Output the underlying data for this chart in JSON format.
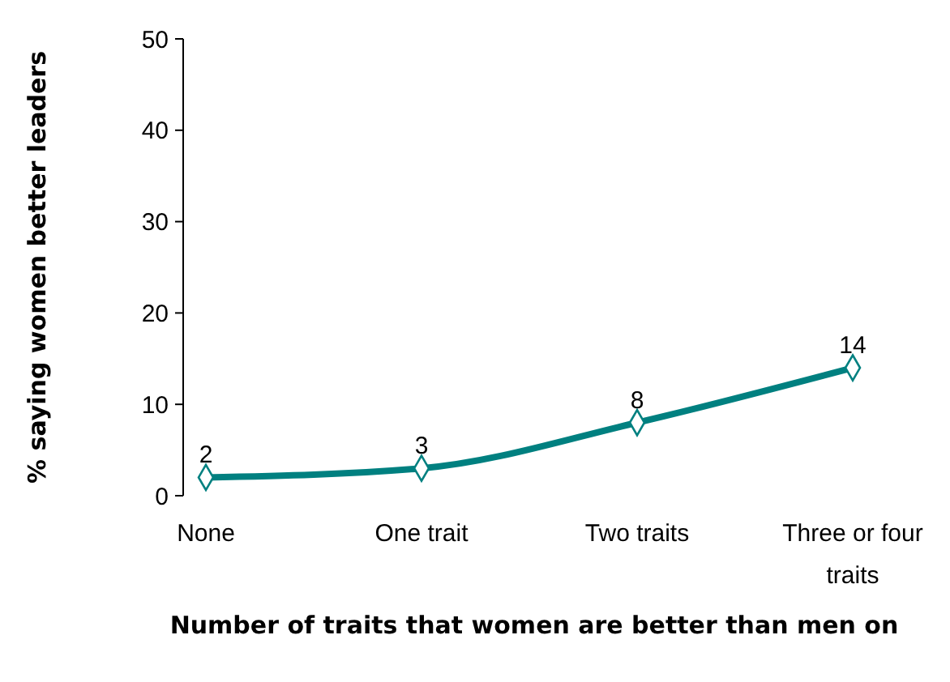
{
  "chart_data": {
    "type": "line",
    "xlabel": "Number of traits that women are better than men on",
    "ylabel": "% saying women better leaders",
    "categories": [
      "None",
      "One trait",
      "Two traits",
      "Three or four traits"
    ],
    "series": [
      {
        "color": "#008080",
        "values": [
          2,
          3,
          8,
          14
        ]
      }
    ],
    "ylim": [
      0,
      50
    ],
    "yticks": [
      0,
      10,
      20,
      30,
      40,
      50
    ],
    "marker": "diamond",
    "data_labels": true,
    "grid": false
  }
}
